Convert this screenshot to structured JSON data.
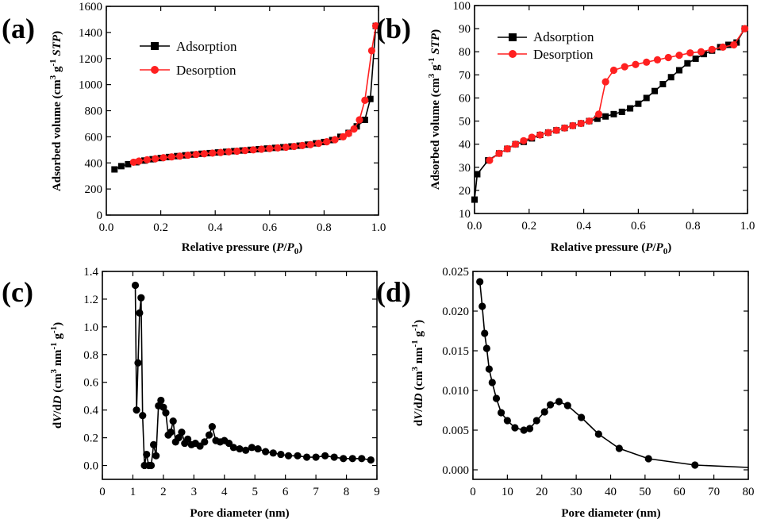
{
  "colors": {
    "adsorption": "#000000",
    "desorption": "#ff2020",
    "axis": "#000000"
  },
  "chart_data": [
    {
      "panel_label": "(a)",
      "type": "line",
      "xlabel": {
        "pre": "Relative pressure (",
        "v1": "P",
        "sep": "/",
        "v2": "P",
        "sub": "0",
        "post": ")"
      },
      "ylabel": {
        "pre": "Adsorbed volume (cm",
        "sup1": "3",
        "mid": " g",
        "sup2": "-1",
        "sp": " ",
        "it": "STP",
        "post": ")"
      },
      "xlim": [
        0,
        1.0
      ],
      "ylim": [
        0,
        1600
      ],
      "xticks": [
        0.0,
        0.2,
        0.4,
        0.6,
        0.8,
        1.0
      ],
      "xtick_labels": [
        "0.0",
        "0.2",
        "0.4",
        "0.6",
        "0.8",
        "1.0"
      ],
      "yticks": [
        0,
        200,
        400,
        600,
        800,
        1000,
        1200,
        1400,
        1600
      ],
      "ytick_labels": [
        "0",
        "200",
        "400",
        "600",
        "800",
        "1000",
        "1200",
        "1400",
        "1600"
      ],
      "legend_position": "top-left",
      "series": [
        {
          "name": "Adsorption",
          "marker": "square",
          "color_key": "adsorption",
          "x": [
            0.03,
            0.055,
            0.08,
            0.11,
            0.14,
            0.17,
            0.2,
            0.23,
            0.26,
            0.29,
            0.32,
            0.35,
            0.38,
            0.41,
            0.44,
            0.47,
            0.5,
            0.53,
            0.56,
            0.59,
            0.62,
            0.65,
            0.68,
            0.71,
            0.74,
            0.77,
            0.8,
            0.83,
            0.86,
            0.89,
            0.92,
            0.95,
            0.97,
            0.99
          ],
          "y": [
            350,
            375,
            390,
            405,
            418,
            428,
            437,
            445,
            452,
            458,
            464,
            470,
            475,
            480,
            485,
            490,
            495,
            500,
            505,
            510,
            515,
            520,
            526,
            532,
            540,
            550,
            560,
            575,
            600,
            630,
            680,
            730,
            890,
            1450
          ]
        },
        {
          "name": "Desorption",
          "marker": "circle",
          "color_key": "desorption",
          "x": [
            0.99,
            0.975,
            0.95,
            0.93,
            0.91,
            0.89,
            0.87,
            0.84,
            0.81,
            0.78,
            0.75,
            0.72,
            0.69,
            0.66,
            0.63,
            0.6,
            0.57,
            0.54,
            0.51,
            0.48,
            0.45,
            0.42,
            0.39,
            0.36,
            0.33,
            0.3,
            0.27,
            0.24,
            0.21,
            0.18,
            0.15,
            0.12,
            0.1
          ],
          "y": [
            1450,
            1260,
            880,
            730,
            660,
            625,
            600,
            578,
            562,
            550,
            540,
            533,
            526,
            520,
            515,
            510,
            505,
            500,
            495,
            490,
            485,
            480,
            475,
            470,
            465,
            459,
            452,
            446,
            440,
            432,
            424,
            414,
            405
          ]
        }
      ]
    },
    {
      "panel_label": "(b)",
      "type": "line",
      "xlabel": {
        "pre": "Relative pressure (",
        "v1": "P",
        "sep": "/",
        "v2": "P",
        "sub": "0",
        "post": ")"
      },
      "ylabel": {
        "pre": "Adsorbed volume (cm",
        "sup1": "3",
        "mid": " g",
        "sup2": "-1",
        "sp": " ",
        "it": "STP",
        "post": ")"
      },
      "xlim": [
        0,
        1.0
      ],
      "ylim": [
        10,
        100
      ],
      "xticks": [
        0.0,
        0.2,
        0.4,
        0.6,
        0.8,
        1.0
      ],
      "xtick_labels": [
        "0.0",
        "0.2",
        "0.4",
        "0.6",
        "0.8",
        "1.0"
      ],
      "yticks": [
        10,
        20,
        30,
        40,
        50,
        60,
        70,
        80,
        90,
        100
      ],
      "ytick_labels": [
        "10",
        "20",
        "30",
        "40",
        "50",
        "60",
        "70",
        "80",
        "90",
        "100"
      ],
      "legend_position": "top-left",
      "series": [
        {
          "name": "Adsorption",
          "marker": "square",
          "color_key": "adsorption",
          "x": [
            0.0,
            0.01,
            0.05,
            0.09,
            0.12,
            0.15,
            0.18,
            0.21,
            0.24,
            0.27,
            0.3,
            0.33,
            0.36,
            0.39,
            0.42,
            0.45,
            0.48,
            0.51,
            0.54,
            0.57,
            0.6,
            0.63,
            0.66,
            0.69,
            0.72,
            0.75,
            0.78,
            0.81,
            0.84,
            0.87,
            0.9,
            0.93,
            0.96,
            0.99
          ],
          "y": [
            16,
            27,
            33,
            36,
            38,
            40,
            41,
            42.5,
            44,
            45,
            46,
            47,
            48,
            49,
            50,
            51,
            52,
            53,
            54,
            55.5,
            57.5,
            60,
            63,
            66,
            69,
            72,
            75,
            77,
            79,
            80.5,
            82,
            83,
            84,
            90
          ]
        },
        {
          "name": "Desorption",
          "marker": "circle",
          "color_key": "desorption",
          "x": [
            0.99,
            0.95,
            0.91,
            0.87,
            0.83,
            0.79,
            0.75,
            0.71,
            0.67,
            0.63,
            0.59,
            0.55,
            0.51,
            0.48,
            0.455,
            0.42,
            0.39,
            0.36,
            0.33,
            0.3,
            0.27,
            0.24,
            0.21,
            0.18,
            0.15,
            0.12,
            0.09,
            0.055
          ],
          "y": [
            90,
            83,
            82,
            81,
            80,
            79.5,
            78.5,
            77.5,
            76.5,
            75.5,
            74.5,
            73.5,
            72,
            67,
            53,
            50,
            49,
            48,
            47,
            46,
            45,
            44,
            43,
            41.5,
            40,
            38,
            36,
            33
          ]
        }
      ]
    },
    {
      "panel_label": "(c)",
      "type": "line",
      "xlabel": {
        "pre": "Pore diameter (nm)"
      },
      "ylabel": {
        "pre": "d",
        "it1": "V",
        "sep": "/d",
        "it2": "D",
        "mid": " (cm",
        "sup1": "3",
        "mid2": " nm",
        "sup2": "-1",
        "mid3": " g",
        "sup3": "-1",
        "post": ")"
      },
      "xlim": [
        0,
        9
      ],
      "ylim": [
        -0.1,
        1.4
      ],
      "xticks": [
        0,
        1,
        2,
        3,
        4,
        5,
        6,
        7,
        8,
        9
      ],
      "xtick_labels": [
        "0",
        "1",
        "2",
        "3",
        "4",
        "5",
        "6",
        "7",
        "8",
        "9"
      ],
      "yticks": [
        0.0,
        0.2,
        0.4,
        0.6,
        0.8,
        1.0,
        1.2,
        1.4
      ],
      "ytick_labels": [
        "0.0",
        "0.2",
        "0.4",
        "0.6",
        "0.8",
        "1.0",
        "1.2",
        "1.4"
      ],
      "series": [
        {
          "name": "",
          "marker": "circle",
          "color_key": "adsorption",
          "x": [
            1.08,
            1.12,
            1.17,
            1.22,
            1.27,
            1.32,
            1.38,
            1.45,
            1.52,
            1.6,
            1.68,
            1.76,
            1.84,
            1.92,
            2.0,
            2.08,
            2.16,
            2.24,
            2.32,
            2.4,
            2.5,
            2.6,
            2.7,
            2.8,
            2.92,
            3.05,
            3.2,
            3.35,
            3.5,
            3.6,
            3.72,
            3.86,
            4.0,
            4.15,
            4.3,
            4.5,
            4.7,
            4.9,
            5.1,
            5.35,
            5.6,
            5.85,
            6.1,
            6.4,
            6.7,
            7.0,
            7.3,
            7.6,
            7.9,
            8.2,
            8.5,
            8.8
          ],
          "y": [
            1.3,
            0.4,
            0.74,
            1.1,
            1.21,
            0.36,
            0.0,
            0.08,
            0.0,
            0.0,
            0.15,
            0.07,
            0.43,
            0.47,
            0.42,
            0.38,
            0.22,
            0.24,
            0.32,
            0.17,
            0.2,
            0.24,
            0.16,
            0.19,
            0.15,
            0.16,
            0.14,
            0.17,
            0.22,
            0.28,
            0.18,
            0.17,
            0.18,
            0.16,
            0.13,
            0.12,
            0.11,
            0.13,
            0.12,
            0.1,
            0.09,
            0.08,
            0.07,
            0.07,
            0.06,
            0.06,
            0.07,
            0.06,
            0.05,
            0.05,
            0.05,
            0.04
          ]
        }
      ]
    },
    {
      "panel_label": "(d)",
      "type": "line",
      "xlabel": {
        "pre": "Pore diameter (nm)"
      },
      "ylabel": {
        "pre": "d",
        "it1": "V",
        "sep": "/d",
        "it2": "D",
        "mid": " (cm",
        "sup1": "3",
        "mid2": " nm",
        "sup2": "-1",
        "mid3": " g",
        "sup3": "-1",
        "post": ")"
      },
      "xlim": [
        0,
        80
      ],
      "ylim": [
        -0.0012,
        0.025
      ],
      "xticks": [
        0,
        10,
        20,
        30,
        40,
        50,
        60,
        70,
        80
      ],
      "xtick_labels": [
        "0",
        "10",
        "20",
        "30",
        "40",
        "50",
        "60",
        "70",
        "80"
      ],
      "yticks": [
        0.0,
        0.005,
        0.01,
        0.015,
        0.02,
        0.025
      ],
      "ytick_labels": [
        "0.000",
        "0.005",
        "0.010",
        "0.015",
        "0.020",
        "0.025"
      ],
      "series": [
        {
          "name": "",
          "marker": "circle",
          "color_key": "adsorption",
          "x": [
            2.0,
            2.7,
            3.4,
            4.0,
            4.7,
            5.6,
            6.8,
            8.2,
            10.0,
            12.2,
            14.8,
            16.5,
            18.5,
            20.8,
            22.5,
            25.0,
            27.5,
            31.5,
            36.5,
            42.5,
            51.0,
            64.5
          ],
          "y": [
            0.0237,
            0.0206,
            0.0172,
            0.0153,
            0.0127,
            0.011,
            0.009,
            0.0072,
            0.0062,
            0.0053,
            0.005,
            0.0052,
            0.0062,
            0.0073,
            0.0082,
            0.0086,
            0.0081,
            0.0066,
            0.0045,
            0.0027,
            0.0014,
            0.0006
          ]
        }
      ],
      "tail": {
        "x": [
          64.5,
          80
        ],
        "y": [
          0.0006,
          0.0003
        ]
      }
    }
  ]
}
